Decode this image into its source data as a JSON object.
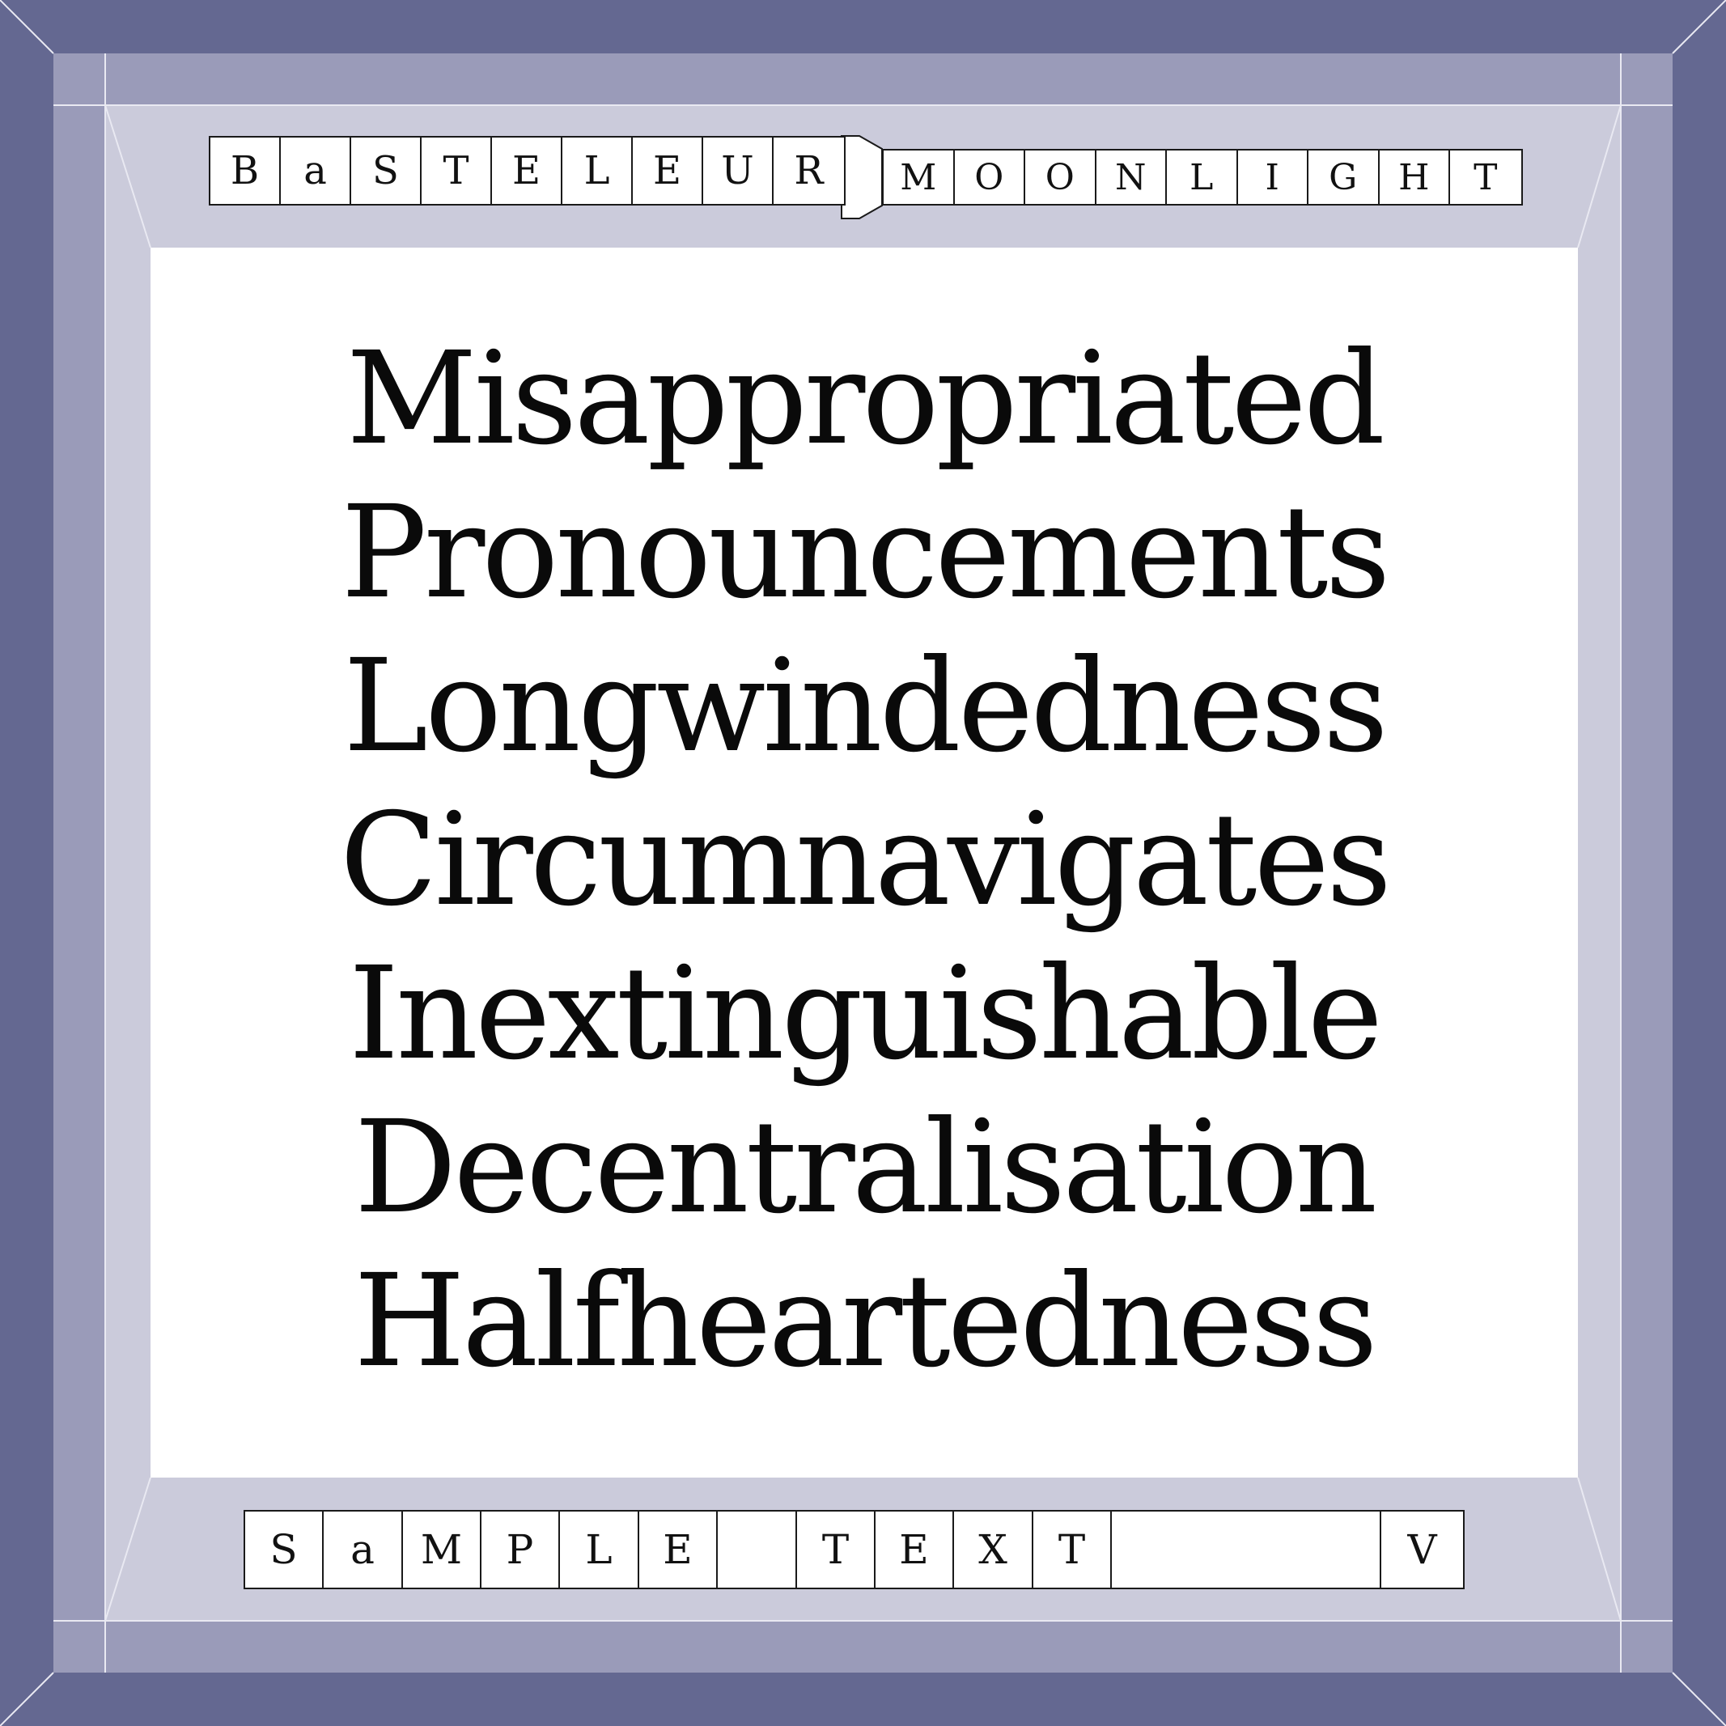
{
  "colors": {
    "outer_frame": "#646891",
    "middle_frame": "#9a9bb9",
    "inner_frame": "#cbcbdb",
    "panel": "#ffffff",
    "ink": "#111111"
  },
  "title": {
    "left_letters": [
      "B",
      "a",
      "S",
      "T",
      "E",
      "L",
      "E",
      "U",
      "R"
    ],
    "right_letters": [
      "M",
      "O",
      "O",
      "N",
      "L",
      "I",
      "G",
      "H",
      "T"
    ]
  },
  "words": [
    "Misappropriated",
    "Pronouncements",
    "Longwindedness",
    "Circumnavigates",
    "Inextinguishable",
    "Decentralisation",
    "Halfheartedness"
  ],
  "footer": {
    "cells": [
      "S",
      "a",
      "M",
      "P",
      "L",
      "E",
      "",
      "T",
      "E",
      "X",
      "T",
      "",
      "V"
    ]
  }
}
